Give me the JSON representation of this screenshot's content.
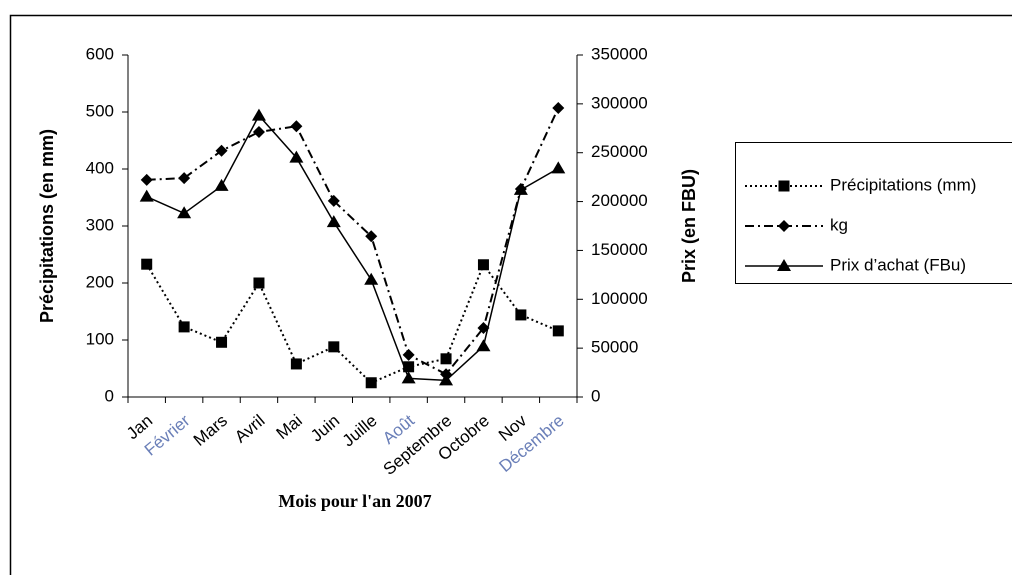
{
  "chart_data": {
    "type": "line",
    "x_label": "Mois pour l'an 2007",
    "y_label": "Précipitations (en mm)",
    "y2_label": "Prix (en FBU)",
    "categories": [
      "Jan",
      "Février",
      "Mars",
      "Avril",
      "Mai",
      "Juin",
      "Juille",
      "Août",
      "Septembre",
      "Octobre",
      "Nov",
      "Décembre"
    ],
    "series": [
      {
        "name": "Précipitations (mm)",
        "color": "#000000",
        "marker": "square",
        "dash": "dotted",
        "axis": "y",
        "values": [
          233,
          123,
          96,
          200,
          58,
          88,
          25,
          53,
          67,
          232,
          144,
          116
        ]
      },
      {
        "name": "kg",
        "color": "#000000",
        "marker": "diamond",
        "dash": "dashdot",
        "axis": "y",
        "values": [
          381,
          384,
          432,
          465,
          475,
          344,
          282,
          74,
          40,
          121,
          365,
          507
        ]
      },
      {
        "name": "Prix d’achat (FBu)",
        "color": "#000000",
        "marker": "triangle",
        "dash": "solid",
        "axis": "y2",
        "values": [
          205000,
          188000,
          216000,
          288000,
          245000,
          179000,
          120000,
          19000,
          17000,
          52000,
          212000,
          234000
        ]
      }
    ],
    "ylim": [
      0,
      600
    ],
    "yticks": [
      0,
      100,
      200,
      300,
      400,
      500,
      600
    ],
    "y2lim": [
      0,
      350000
    ],
    "y2ticks": [
      0,
      50000,
      100000,
      150000,
      200000,
      250000,
      300000,
      350000
    ],
    "grid": false,
    "legend": "right"
  }
}
